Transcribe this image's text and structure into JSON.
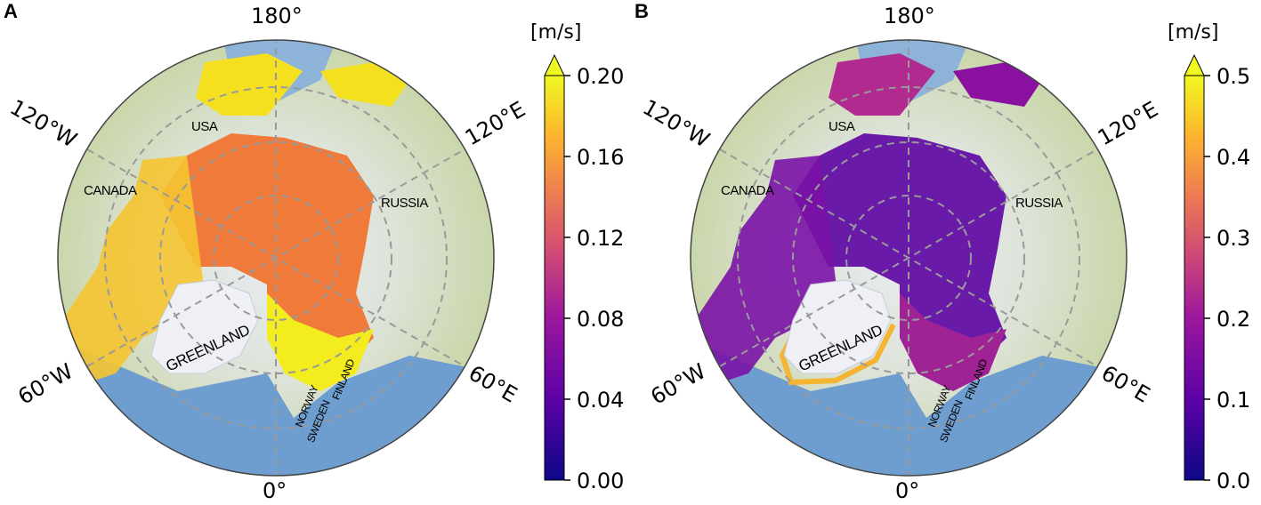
{
  "panels": [
    {
      "letter": "A",
      "longitudes": {
        "top": "180°",
        "bottom": "0°",
        "upper_left": "120°W",
        "upper_right": "120°E",
        "lower_left": "60°W",
        "lower_right": "60°E"
      },
      "countries": {
        "usa": "USA",
        "canada": "CANADA",
        "russia": "RUSSIA",
        "greenland": "GREENLAND",
        "norway": "NORWAY",
        "sweden": "SWEDEN",
        "finland": "FINLAND"
      },
      "colorbar": {
        "unit": "[m/s]",
        "ticks": [
          "0.00",
          "0.04",
          "0.08",
          "0.12",
          "0.16",
          "0.20"
        ],
        "min": 0.0,
        "max": 0.2,
        "extend": "max",
        "colormap": "plasma"
      },
      "ice_color": "#f07a3a"
    },
    {
      "letter": "B",
      "longitudes": {
        "top": "180°",
        "bottom": "0°",
        "upper_left": "120°W",
        "upper_right": "120°E",
        "lower_left": "60°W",
        "lower_right": "60°E"
      },
      "countries": {
        "usa": "USA",
        "canada": "CANADA",
        "russia": "RUSSIA",
        "greenland": "GREENLAND",
        "norway": "NORWAY",
        "sweden": "SWEDEN",
        "finland": "FINLAND"
      },
      "colorbar": {
        "unit": "[m/s]",
        "ticks": [
          "0.0",
          "0.1",
          "0.2",
          "0.3",
          "0.4",
          "0.5"
        ],
        "min": 0.0,
        "max": 0.5,
        "extend": "max",
        "colormap": "plasma"
      },
      "ice_color": "#6a1aa8"
    }
  ]
}
